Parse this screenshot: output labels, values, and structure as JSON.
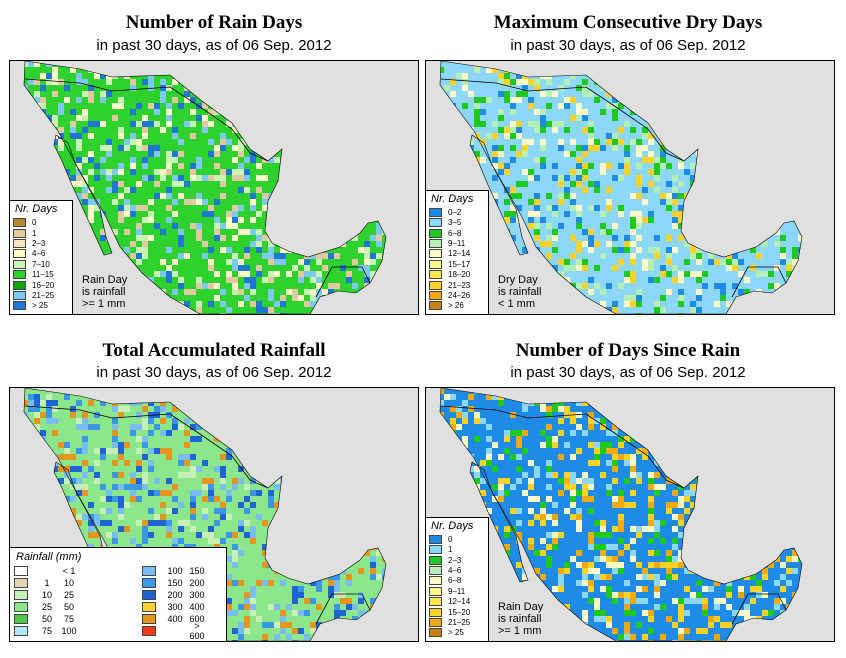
{
  "panels": [
    {
      "title": "Number of Rain Days",
      "subtitle": "in past 30 days, as of  06 Sep. 2012",
      "legend_title": "Nr. Days",
      "legend": [
        {
          "label": "0",
          "color": "#b88a2e"
        },
        {
          "label": "1",
          "color": "#e3c9a0"
        },
        {
          "label": "2–3",
          "color": "#f5e8c2"
        },
        {
          "label": "4–6",
          "color": "#fffdc8"
        },
        {
          "label": "7–10",
          "color": "#c8f5b4"
        },
        {
          "label": "11–15",
          "color": "#2ed12e"
        },
        {
          "label": "16–20",
          "color": "#14a514"
        },
        {
          "label": "21–25",
          "color": "#7ec8f5"
        },
        {
          "label": "> 25",
          "color": "#1e78d2"
        }
      ],
      "note": [
        "Rain Day",
        "is rainfall",
        ">= 1 mm"
      ]
    },
    {
      "title": "Maximum Consecutive Dry Days",
      "subtitle": "in past 30 days, as of  06 Sep. 2012",
      "legend_title": "Nr. Days",
      "legend": [
        {
          "label": "0–2",
          "color": "#1e8ce6"
        },
        {
          "label": "3–5",
          "color": "#8cd7fa"
        },
        {
          "label": "6–8",
          "color": "#1ec81e"
        },
        {
          "label": "9–11",
          "color": "#b4f0b4"
        },
        {
          "label": "12–14",
          "color": "#fffac8"
        },
        {
          "label": "15–17",
          "color": "#fff58c"
        },
        {
          "label": "18–20",
          "color": "#ffe650"
        },
        {
          "label": "21–23",
          "color": "#ffd228"
        },
        {
          "label": "24–26",
          "color": "#f0aa14"
        },
        {
          "label": "> 26",
          "color": "#c88214"
        }
      ],
      "note": [
        "Dry Day",
        "is rainfall",
        "< 1 mm"
      ]
    },
    {
      "title": "Total Accumulated Rainfall",
      "subtitle": "in past 30 days, as of  06 Sep. 2012",
      "legend_title": "Rainfall (mm)",
      "legend": [
        {
          "lo": "",
          "hi": "< 1",
          "color": "#ffffff"
        },
        {
          "lo": "1",
          "hi": "10",
          "color": "#e6d2b4"
        },
        {
          "lo": "10",
          "hi": "25",
          "color": "#c8f0b4"
        },
        {
          "lo": "25",
          "hi": "50",
          "color": "#8ce68c"
        },
        {
          "lo": "50",
          "hi": "75",
          "color": "#50c850"
        },
        {
          "lo": "75",
          "hi": "100",
          "color": "#b4e6fa"
        },
        {
          "lo": "100",
          "hi": "150",
          "color": "#78bef0"
        },
        {
          "lo": "150",
          "hi": "200",
          "color": "#3c96e6"
        },
        {
          "lo": "200",
          "hi": "300",
          "color": "#1e64d2"
        },
        {
          "lo": "300",
          "hi": "400",
          "color": "#ffd232"
        },
        {
          "lo": "400",
          "hi": "600",
          "color": "#e6961e"
        },
        {
          "lo": "",
          "hi": "> 600",
          "color": "#f03c14"
        }
      ]
    },
    {
      "title": "Number of Days Since Rain",
      "subtitle": "in past 30 days, as of  06 Sep. 2012",
      "legend_title": "Nr. Days",
      "legend": [
        {
          "label": "0",
          "color": "#1e8ce6"
        },
        {
          "label": "1",
          "color": "#8cd7fa"
        },
        {
          "label": "2–3",
          "color": "#1ec81e"
        },
        {
          "label": "4–6",
          "color": "#b4f0b4"
        },
        {
          "label": "6–8",
          "color": "#fffac8"
        },
        {
          "label": "9–11",
          "color": "#fff58c"
        },
        {
          "label": "12–14",
          "color": "#ffe650"
        },
        {
          "label": "15–20",
          "color": "#ffd228"
        },
        {
          "label": "21–25",
          "color": "#f0aa14"
        },
        {
          "label": "> 25",
          "color": "#c88214"
        }
      ],
      "note": [
        "Rain Day",
        "is rainfall",
        ">= 1 mm"
      ]
    }
  ],
  "map_fills": {
    "ocean": "#e0e0e0",
    "other_land": "#e0e0e0",
    "panel1": {
      "base": "#2ed12e",
      "a": "#c8f5b4",
      "b": "#fffdc8",
      "c": "#e3c9a0",
      "d": "#7ec8f5",
      "e": "#1e78d2"
    },
    "panel2": {
      "base": "#8cd7fa",
      "a": "#fffac8",
      "b": "#b4f0b4",
      "c": "#1ec81e",
      "d": "#ffd228",
      "e": "#1e8ce6"
    },
    "panel3": {
      "base": "#8ce68c",
      "a": "#c8f0b4",
      "b": "#3c96e6",
      "c": "#1e64d2",
      "d": "#e6961e",
      "e": "#78bef0"
    },
    "panel4": {
      "base": "#1e8ce6",
      "a": "#fffac8",
      "b": "#ffd228",
      "c": "#8cd7fa",
      "d": "#1ec81e",
      "e": "#f0aa14"
    }
  }
}
